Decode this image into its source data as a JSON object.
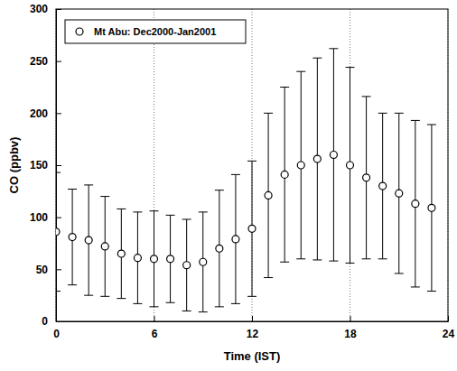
{
  "chart_data": {
    "type": "scatter",
    "x_label": "Time (IST)",
    "y_label": "CO (ppbv)",
    "x": [
      0,
      1,
      2,
      3,
      4,
      5,
      6,
      7,
      8,
      9,
      10,
      11,
      12,
      13,
      14,
      15,
      16,
      17,
      18,
      19,
      20,
      21,
      22,
      23
    ],
    "series": [
      {
        "name": "Mt Abu: Dec2000-Jan2001",
        "color": "#000000",
        "marker": "circle",
        "values": [
          86,
          81,
          78,
          72,
          65,
          61,
          60,
          60,
          54,
          57,
          70,
          79,
          89,
          121,
          141,
          150,
          156,
          160,
          150,
          138,
          130,
          123,
          113,
          109
        ],
        "errors": [
          57,
          46,
          53,
          48,
          43,
          44,
          46,
          42,
          44,
          48,
          56,
          62,
          65,
          79,
          84,
          90,
          97,
          102,
          94,
          78,
          70,
          77,
          80,
          80
        ]
      }
    ],
    "xlim": [
      0,
      24
    ],
    "xticks": [
      0,
      6,
      12,
      18,
      24
    ],
    "ylim": [
      0,
      300
    ],
    "yticks": [
      0,
      50,
      100,
      150,
      200,
      250,
      300
    ],
    "grid": "x",
    "legend": "upper left"
  }
}
